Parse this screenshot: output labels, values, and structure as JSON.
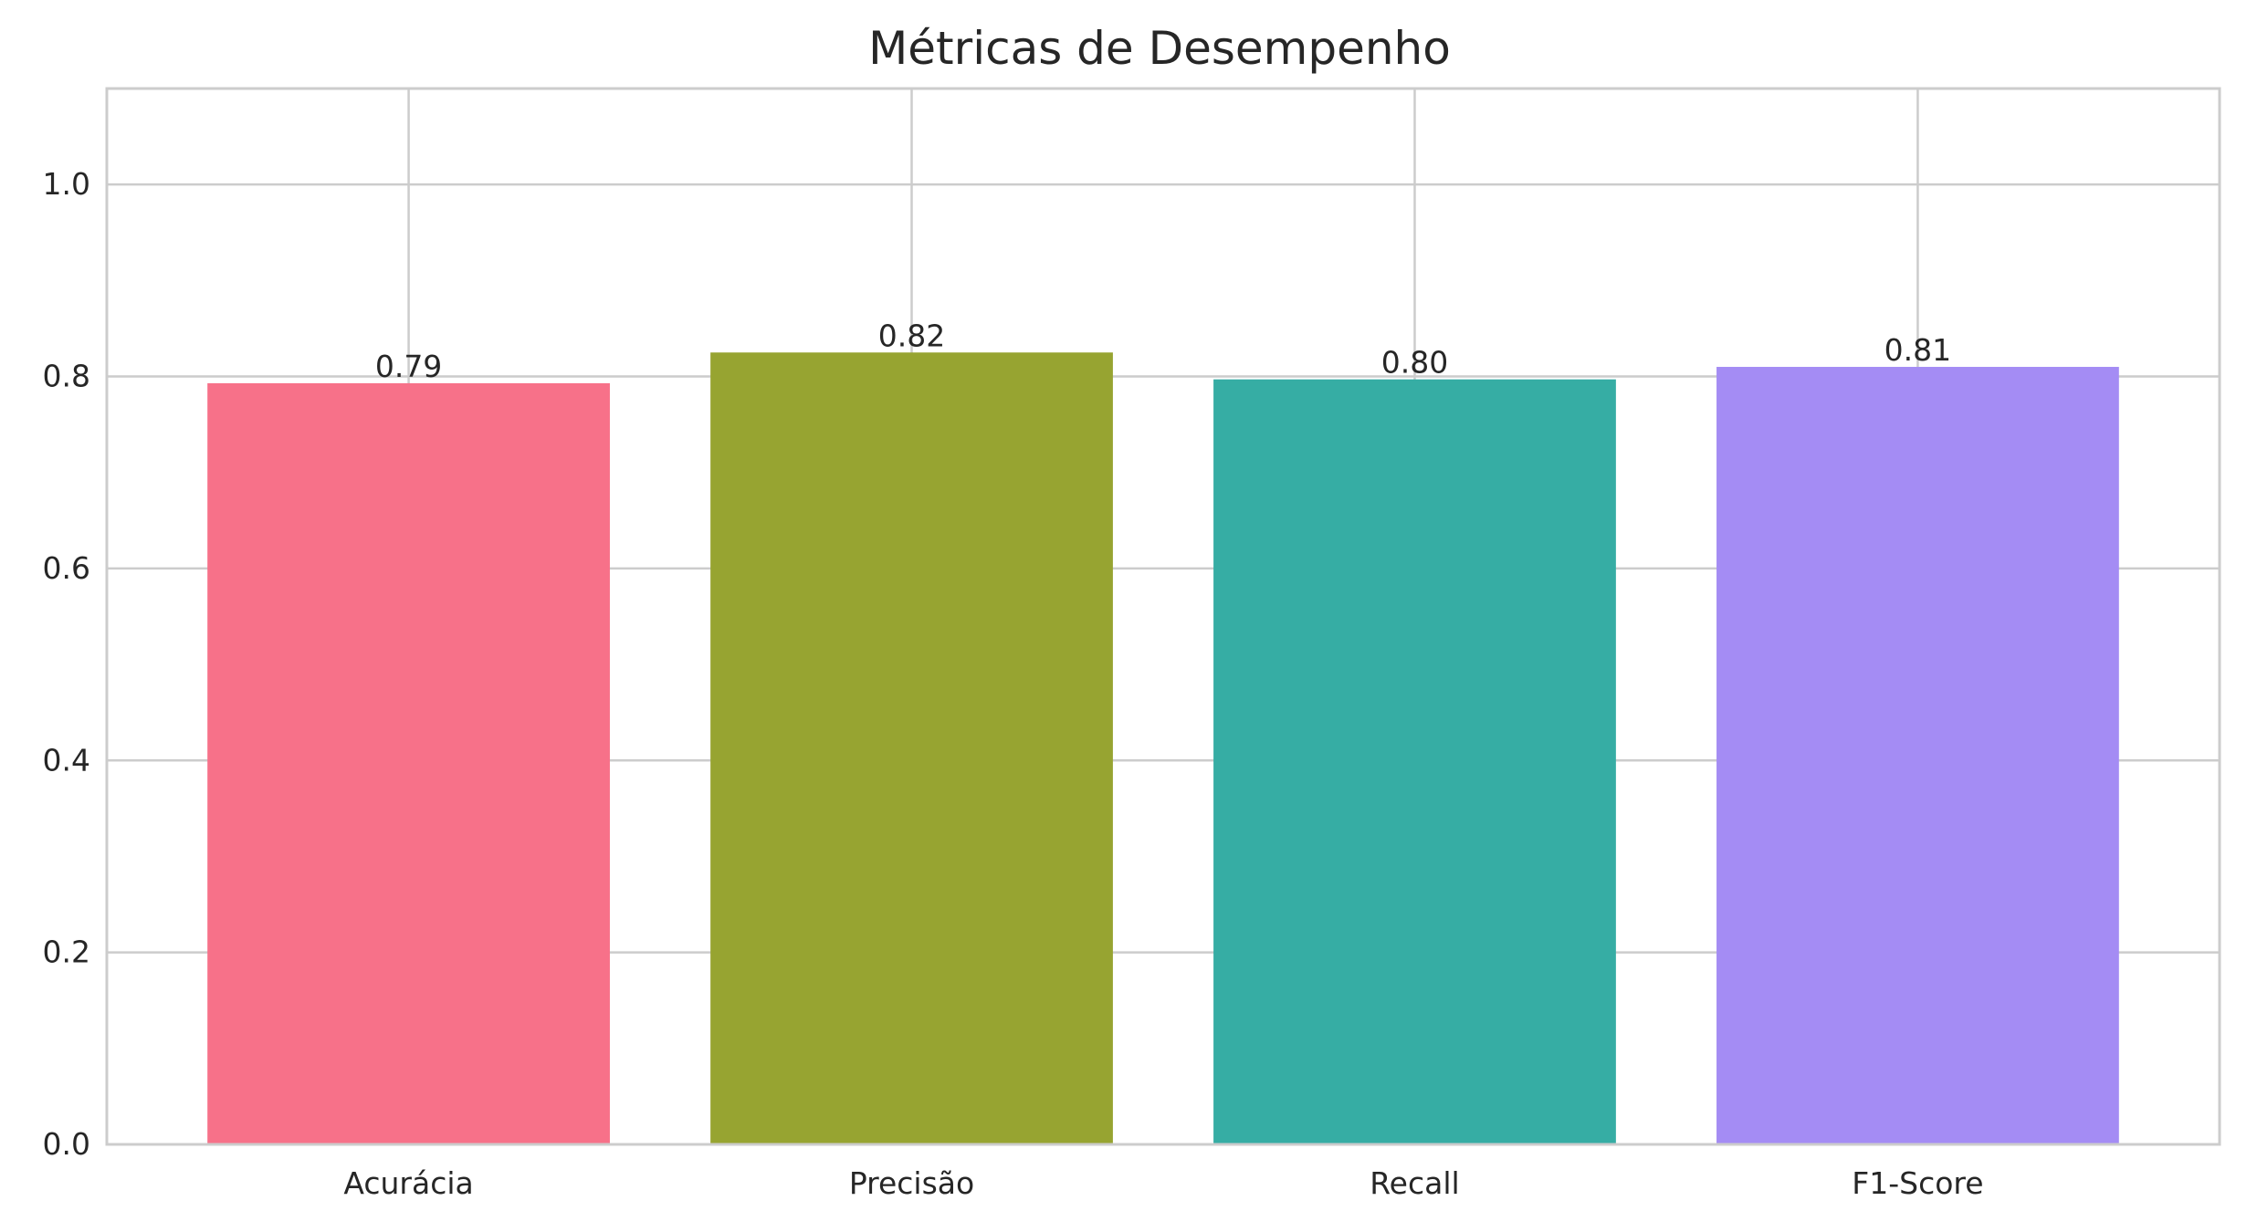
{
  "chart_data": {
    "type": "bar",
    "title": "Métricas de Desempenho",
    "categories": [
      "Acurácia",
      "Precisão",
      "Recall",
      "F1-Score"
    ],
    "values": [
      0.793,
      0.825,
      0.797,
      0.81
    ],
    "data_labels": [
      "0.79",
      "0.82",
      "0.80",
      "0.81"
    ],
    "colors": [
      "#f77189",
      "#97a431",
      "#36ada4",
      "#a48cf4"
    ],
    "xlabel": "",
    "ylabel": "",
    "ylim": [
      0,
      1.1
    ],
    "yticks": [
      0.0,
      0.2,
      0.4,
      0.6,
      0.8,
      1.0
    ],
    "ytick_labels": [
      "0.0",
      "0.2",
      "0.4",
      "0.6",
      "0.8",
      "1.0"
    ],
    "grid": true,
    "legend": "none"
  }
}
